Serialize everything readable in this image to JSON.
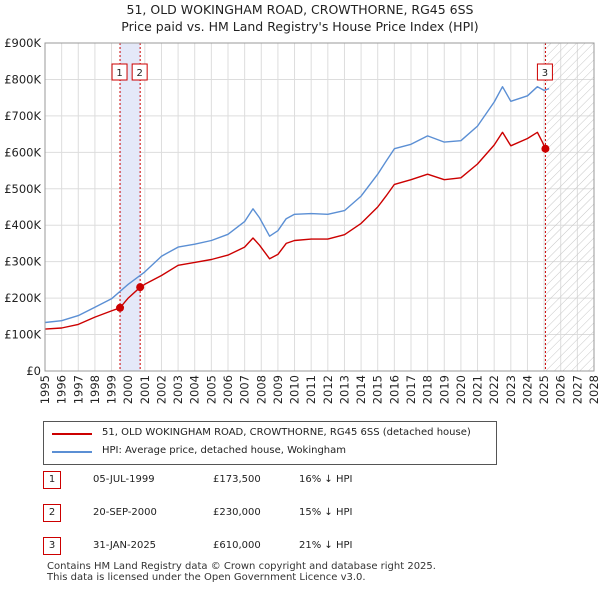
{
  "title_line1": "51, OLD WOKINGHAM ROAD, CROWTHORNE, RG45 6SS",
  "title_line2": "Price paid vs. HM Land Registry's House Price Index (HPI)",
  "legend": {
    "red_label": "51, OLD WOKINGHAM ROAD, CROWTHORNE, RG45 6SS (detached house)",
    "blue_label": "HPI: Average price, detached house, Wokingham"
  },
  "colors": {
    "red": "#cc0000",
    "blue": "#5b8fd4",
    "grid": "#dddddd",
    "band": "#e4e8f8"
  },
  "sales": [
    {
      "num": "1",
      "date": "05-JUL-1999",
      "price": "£173,500",
      "hpi": "16% ↓ HPI"
    },
    {
      "num": "2",
      "date": "20-SEP-2000",
      "price": "£230,000",
      "hpi": "15% ↓ HPI"
    },
    {
      "num": "3",
      "date": "31-JAN-2025",
      "price": "£610,000",
      "hpi": "21% ↓ HPI"
    }
  ],
  "footer": {
    "line1": "Contains HM Land Registry data © Crown copyright and database right 2025.",
    "line2": "This data is licensed under the Open Government Licence v3.0."
  },
  "chart_data": {
    "type": "line",
    "title": "Price paid vs. HM Land Registry's House Price Index (HPI)",
    "xlim": [
      1995,
      2028
    ],
    "ylim": [
      0,
      900000
    ],
    "yticks": [
      0,
      100000,
      200000,
      300000,
      400000,
      500000,
      600000,
      700000,
      800000,
      900000
    ],
    "ytick_labels": [
      "£0",
      "£100K",
      "£200K",
      "£300K",
      "£400K",
      "£500K",
      "£600K",
      "£700K",
      "£800K",
      "£900K"
    ],
    "xticks": [
      "1995",
      "1996",
      "1997",
      "1998",
      "1999",
      "2000",
      "2001",
      "2002",
      "2003",
      "2004",
      "2005",
      "2006",
      "2007",
      "2008",
      "2009",
      "2010",
      "2011",
      "2012",
      "2013",
      "2014",
      "2015",
      "2016",
      "2017",
      "2018",
      "2019",
      "2020",
      "2021",
      "2022",
      "2023",
      "2024",
      "2025",
      "2026",
      "2027",
      "2028"
    ],
    "shaded_band": [
      1999.5,
      2000.72
    ],
    "future_hatch_from": 2025.08,
    "series": [
      {
        "name": "51, OLD WOKINGHAM ROAD, CROWTHORNE, RG45 6SS (detached house)",
        "color": "red",
        "x": [
          1995,
          1996,
          1997,
          1998,
          1999,
          1999.51,
          2000,
          2000.72,
          2001,
          2002,
          2003,
          2004,
          2005,
          2006,
          2007,
          2007.5,
          2007.9,
          2008.5,
          2009,
          2009.5,
          2010,
          2011,
          2012,
          2013,
          2014,
          2015,
          2015.5,
          2016,
          2017,
          2018,
          2019,
          2020,
          2021,
          2022,
          2022.5,
          2023,
          2024,
          2024.6,
          2024.9,
          2025.08
        ],
        "y": [
          115000,
          118000,
          128000,
          148000,
          165000,
          173500,
          200000,
          230000,
          238000,
          262000,
          290000,
          298000,
          306000,
          318000,
          340000,
          365000,
          345000,
          308000,
          320000,
          350000,
          358000,
          362000,
          362000,
          374000,
          405000,
          450000,
          480000,
          512000,
          525000,
          540000,
          525000,
          530000,
          568000,
          620000,
          655000,
          618000,
          638000,
          655000,
          628000,
          610000
        ]
      },
      {
        "name": "HPI: Average price, detached house, Wokingham",
        "color": "blue",
        "x": [
          1995,
          1996,
          1997,
          1998,
          1999,
          2000,
          2001,
          2002,
          2003,
          2004,
          2005,
          2006,
          2007,
          2007.5,
          2007.9,
          2008.5,
          2009,
          2009.5,
          2010,
          2011,
          2012,
          2013,
          2014,
          2015,
          2015.5,
          2016,
          2017,
          2018,
          2019,
          2020,
          2021,
          2022,
          2022.5,
          2023,
          2024,
          2024.6,
          2025,
          2025.3
        ],
        "y": [
          133000,
          138000,
          152000,
          175000,
          198000,
          238000,
          272000,
          315000,
          340000,
          348000,
          358000,
          375000,
          410000,
          445000,
          420000,
          370000,
          385000,
          418000,
          430000,
          432000,
          430000,
          440000,
          480000,
          540000,
          575000,
          610000,
          622000,
          645000,
          628000,
          632000,
          672000,
          738000,
          780000,
          740000,
          755000,
          780000,
          770000,
          775000
        ]
      }
    ],
    "markers": [
      {
        "label": "1",
        "x": 1999.51,
        "y": 173500
      },
      {
        "label": "2",
        "x": 2000.72,
        "y": 230000
      },
      {
        "label": "3",
        "x": 2025.08,
        "y": 610000
      }
    ]
  }
}
